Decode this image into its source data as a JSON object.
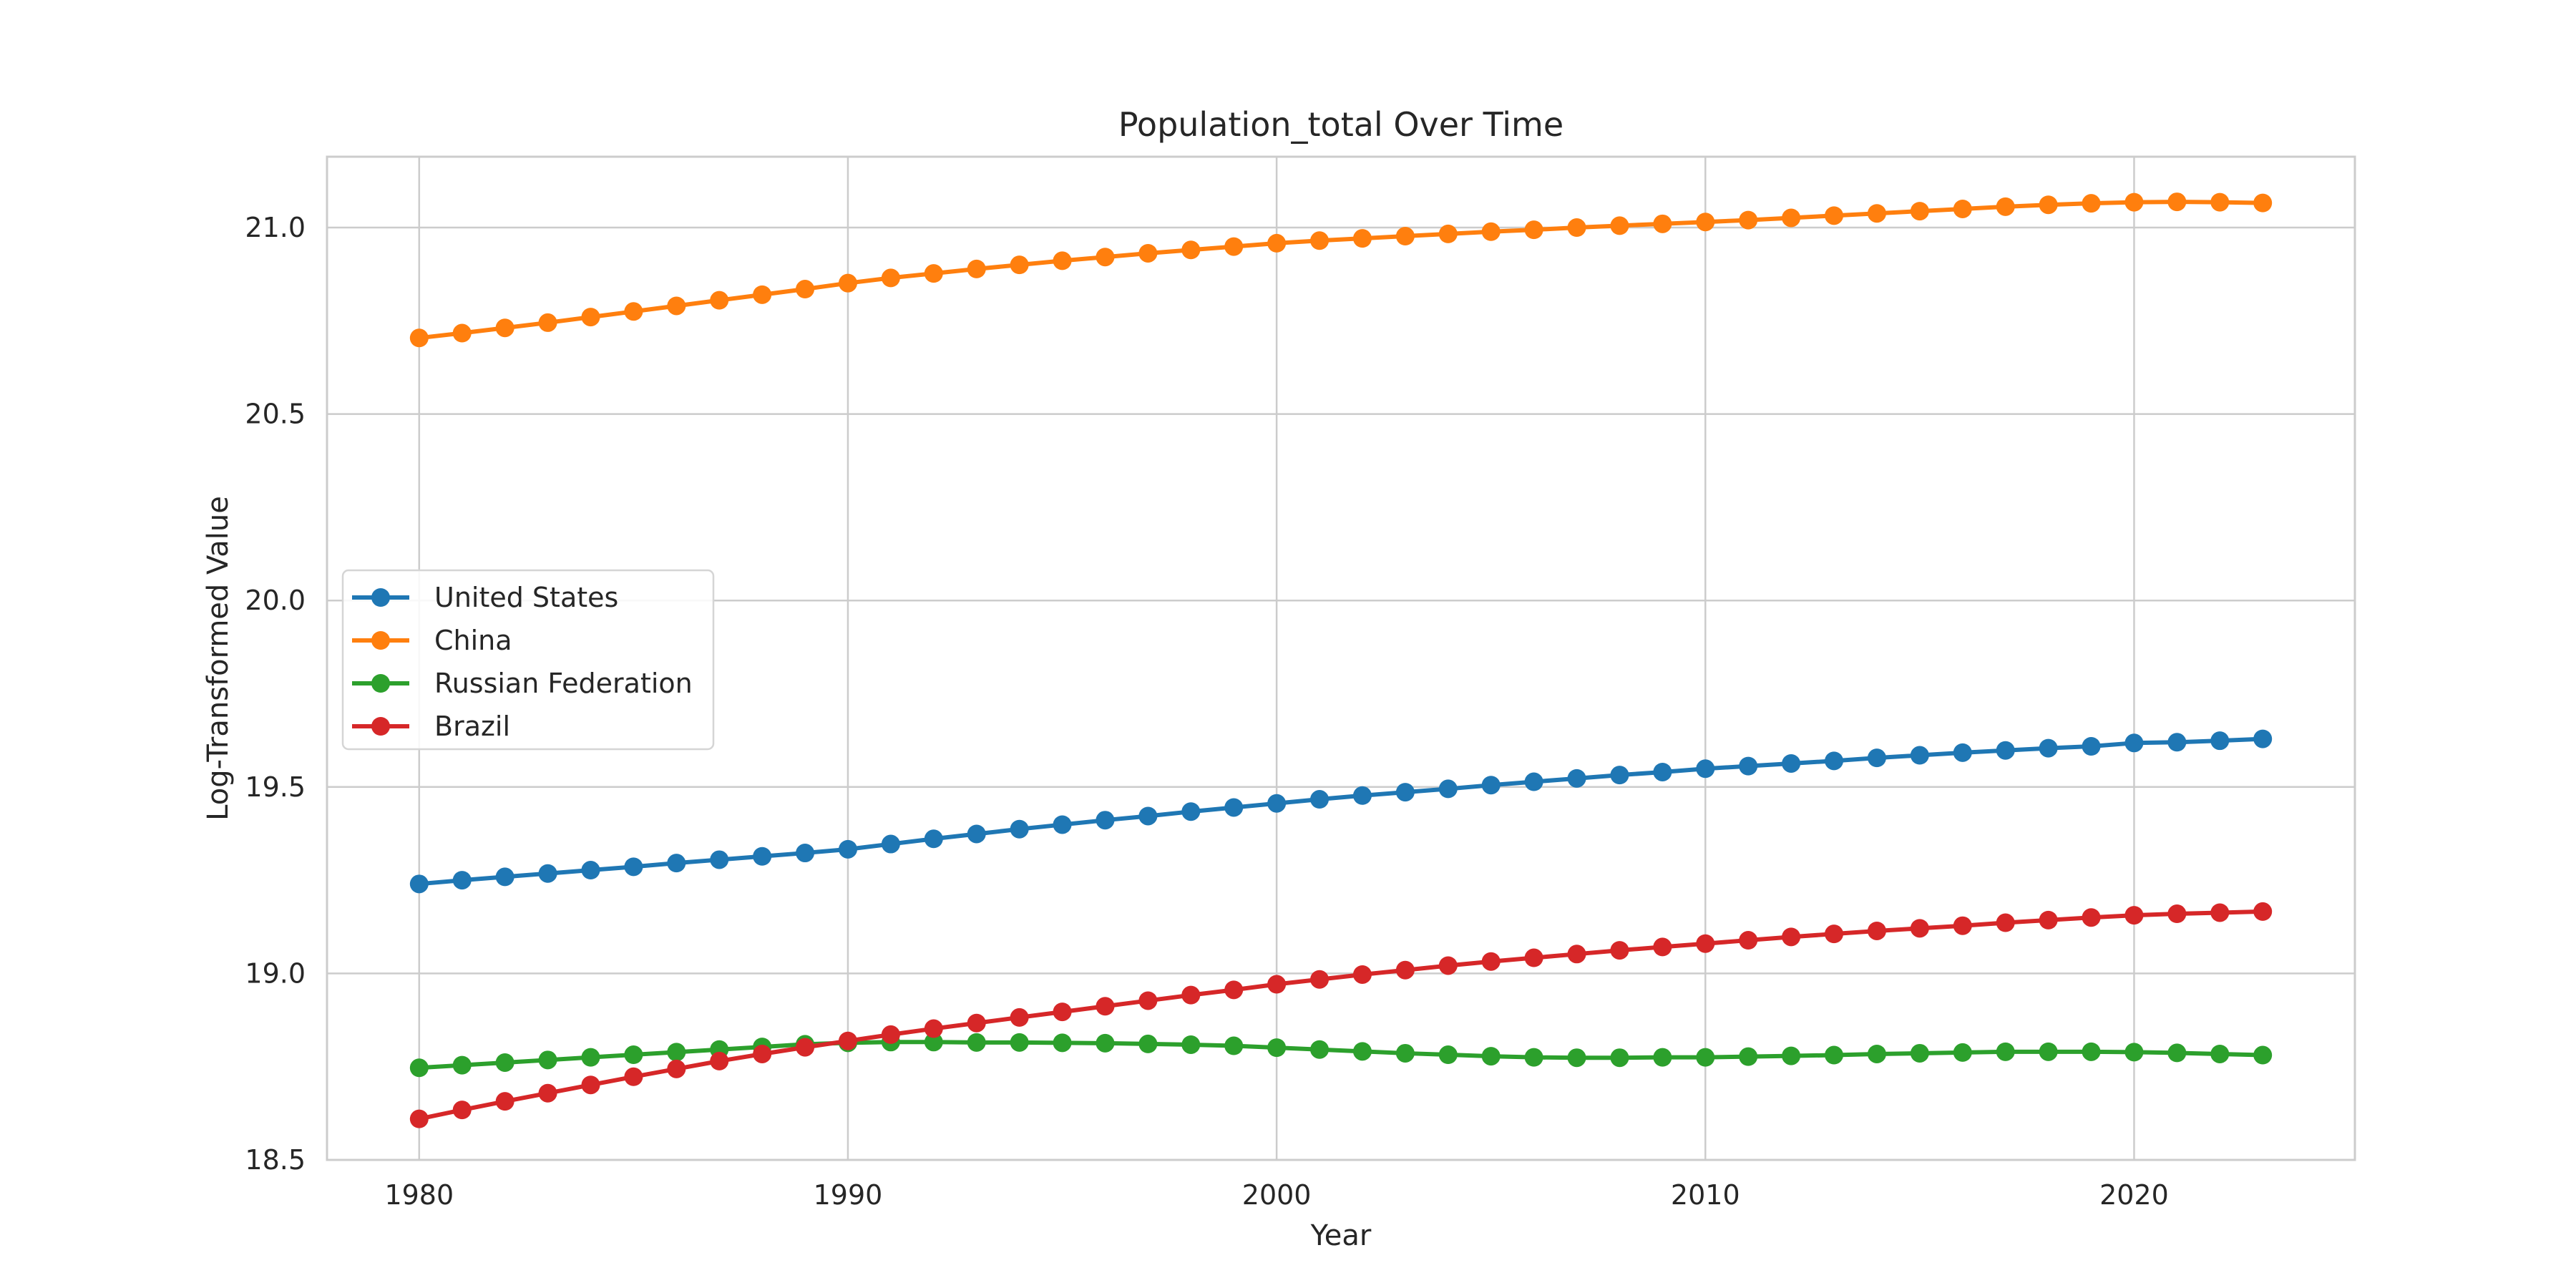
{
  "chart_data": {
    "type": "line",
    "title": "Population_total Over Time",
    "xlabel": "Year",
    "ylabel": "Log-Transformed Value",
    "xlim": [
      1977.85,
      2025.15
    ],
    "ylim": [
      18.5,
      21.19
    ],
    "x_ticks": [
      1980,
      1990,
      2000,
      2010,
      2020
    ],
    "y_ticks": [
      "18.5",
      "19.0",
      "19.5",
      "20.0",
      "20.5",
      "21.0"
    ],
    "grid": true,
    "legend_position": "center-left",
    "marker": "circle",
    "x": [
      1980,
      1981,
      1982,
      1983,
      1984,
      1985,
      1986,
      1987,
      1988,
      1989,
      1990,
      1991,
      1992,
      1993,
      1994,
      1995,
      1996,
      1997,
      1998,
      1999,
      2000,
      2001,
      2002,
      2003,
      2004,
      2005,
      2006,
      2007,
      2008,
      2009,
      2010,
      2011,
      2012,
      2013,
      2014,
      2015,
      2016,
      2017,
      2018,
      2019,
      2020,
      2021,
      2022,
      2023
    ],
    "series": [
      {
        "name": "United States",
        "color": "#1f77b4",
        "values": [
          19.24,
          19.25,
          19.259,
          19.268,
          19.277,
          19.286,
          19.296,
          19.305,
          19.314,
          19.323,
          19.333,
          19.347,
          19.361,
          19.374,
          19.387,
          19.399,
          19.411,
          19.422,
          19.434,
          19.445,
          19.456,
          19.467,
          19.477,
          19.486,
          19.495,
          19.505,
          19.514,
          19.523,
          19.532,
          19.54,
          19.549,
          19.556,
          19.563,
          19.57,
          19.578,
          19.585,
          19.592,
          19.598,
          19.604,
          19.609,
          19.618,
          19.62,
          19.624,
          19.629
        ]
      },
      {
        "name": "China",
        "color": "#ff7f0e",
        "values": [
          20.704,
          20.717,
          20.731,
          20.745,
          20.76,
          20.775,
          20.79,
          20.805,
          20.82,
          20.835,
          20.851,
          20.865,
          20.877,
          20.889,
          20.9,
          20.911,
          20.921,
          20.931,
          20.94,
          20.949,
          20.958,
          20.965,
          20.971,
          20.977,
          20.983,
          20.989,
          20.994,
          21.0,
          21.005,
          21.01,
          21.015,
          21.02,
          21.026,
          21.032,
          21.038,
          21.044,
          21.05,
          21.056,
          21.061,
          21.065,
          21.068,
          21.069,
          21.068,
          21.066
        ]
      },
      {
        "name": "Russian Federation",
        "color": "#2ca02c",
        "values": [
          18.747,
          18.754,
          18.761,
          18.768,
          18.775,
          18.782,
          18.789,
          18.796,
          18.803,
          18.81,
          18.814,
          18.816,
          18.816,
          18.815,
          18.815,
          18.814,
          18.813,
          18.811,
          18.809,
          18.806,
          18.801,
          18.796,
          18.791,
          18.786,
          18.782,
          18.778,
          18.775,
          18.774,
          18.774,
          18.775,
          18.775,
          18.777,
          18.779,
          18.781,
          18.784,
          18.786,
          18.788,
          18.79,
          18.79,
          18.79,
          18.789,
          18.787,
          18.784,
          18.781
        ]
      },
      {
        "name": "Brazil",
        "color": "#d62728",
        "values": [
          18.61,
          18.634,
          18.657,
          18.679,
          18.701,
          18.723,
          18.744,
          18.765,
          18.784,
          18.802,
          18.819,
          18.836,
          18.852,
          18.867,
          18.882,
          18.897,
          18.912,
          18.927,
          18.942,
          18.956,
          18.971,
          18.984,
          18.997,
          19.009,
          19.021,
          19.032,
          19.042,
          19.052,
          19.062,
          19.071,
          19.08,
          19.089,
          19.098,
          19.106,
          19.114,
          19.121,
          19.128,
          19.136,
          19.143,
          19.15,
          19.156,
          19.16,
          19.163,
          19.166
        ]
      }
    ]
  }
}
